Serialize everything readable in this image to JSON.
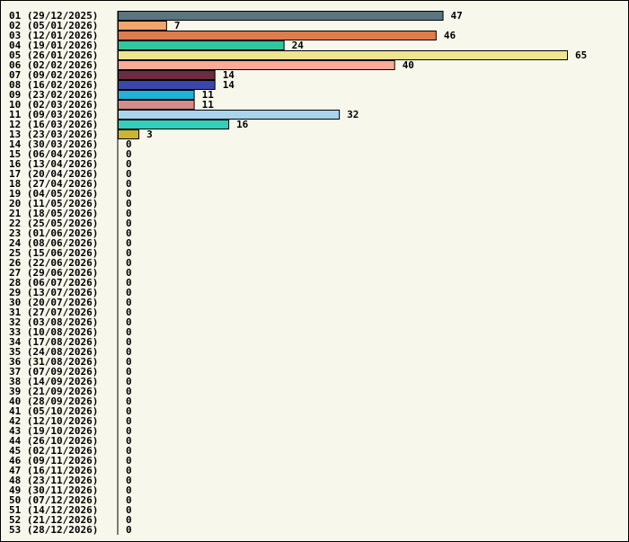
{
  "chart_data": {
    "type": "bar",
    "orientation": "horizontal",
    "title": "",
    "xlabel": "",
    "ylabel": "",
    "categories": [
      "01 (29/12/2025)",
      "02 (05/01/2026)",
      "03 (12/01/2026)",
      "04 (19/01/2026)",
      "05 (26/01/2026)",
      "06 (02/02/2026)",
      "07 (09/02/2026)",
      "08 (16/02/2026)",
      "09 (23/02/2026)",
      "10 (02/03/2026)",
      "11 (09/03/2026)",
      "12 (16/03/2026)",
      "13 (23/03/2026)",
      "14 (30/03/2026)",
      "15 (06/04/2026)",
      "16 (13/04/2026)",
      "17 (20/04/2026)",
      "18 (27/04/2026)",
      "19 (04/05/2026)",
      "20 (11/05/2026)",
      "21 (18/05/2026)",
      "22 (25/05/2026)",
      "23 (01/06/2026)",
      "24 (08/06/2026)",
      "25 (15/06/2026)",
      "26 (22/06/2026)",
      "27 (29/06/2026)",
      "28 (06/07/2026)",
      "29 (13/07/2026)",
      "30 (20/07/2026)",
      "31 (27/07/2026)",
      "32 (03/08/2026)",
      "33 (10/08/2026)",
      "34 (17/08/2026)",
      "35 (24/08/2026)",
      "36 (31/08/2026)",
      "37 (07/09/2026)",
      "38 (14/09/2026)",
      "39 (21/09/2026)",
      "40 (28/09/2026)",
      "41 (05/10/2026)",
      "42 (12/10/2026)",
      "43 (19/10/2026)",
      "44 (26/10/2026)",
      "45 (02/11/2026)",
      "46 (09/11/2026)",
      "47 (16/11/2026)",
      "48 (23/11/2026)",
      "49 (30/11/2026)",
      "50 (07/12/2026)",
      "51 (14/12/2026)",
      "52 (21/12/2026)",
      "53 (28/12/2026)"
    ],
    "values": [
      47,
      7,
      46,
      24,
      65,
      40,
      14,
      14,
      11,
      11,
      32,
      16,
      3,
      0,
      0,
      0,
      0,
      0,
      0,
      0,
      0,
      0,
      0,
      0,
      0,
      0,
      0,
      0,
      0,
      0,
      0,
      0,
      0,
      0,
      0,
      0,
      0,
      0,
      0,
      0,
      0,
      0,
      0,
      0,
      0,
      0,
      0,
      0,
      0,
      0,
      0,
      0,
      0
    ],
    "colors": [
      "#5a7480",
      "#f2a66e",
      "#e07b4b",
      "#2fc79e",
      "#eee58e",
      "#f9ab96",
      "#6e2a3e",
      "#3b47a8",
      "#21b2d8",
      "#d88a88",
      "#a8d4ec",
      "#35cdb8",
      "#c9b434"
    ],
    "xlim": [
      0,
      65
    ],
    "grid": false,
    "legend": "none"
  }
}
